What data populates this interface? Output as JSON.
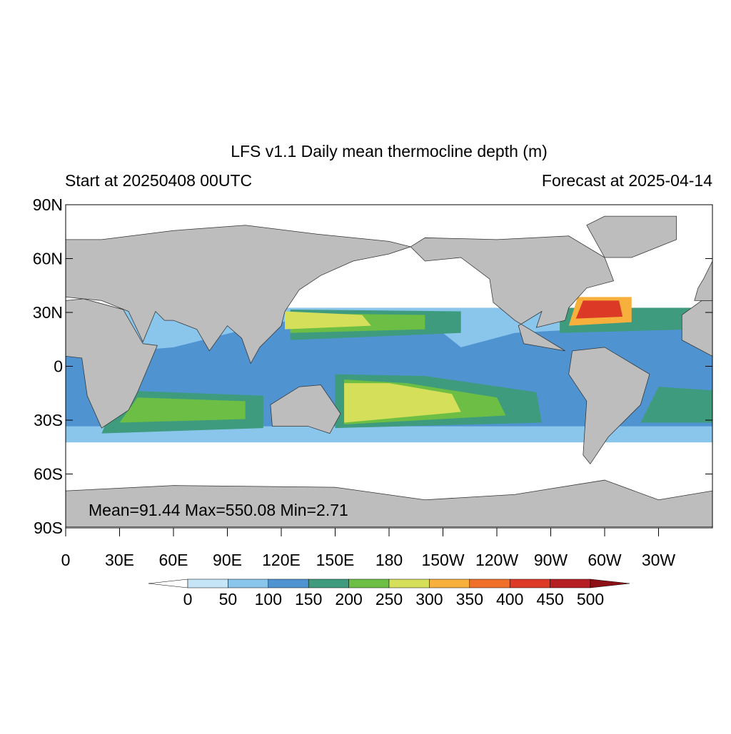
{
  "title": "LFS v1.1 Daily mean thermocline depth (m)",
  "subtitle_left": "Start at 20250408 00UTC",
  "subtitle_right": "Forecast at 2025-04-14",
  "map": {
    "lonlim": [
      0,
      360
    ],
    "latlim": [
      -90,
      90
    ],
    "lat_ticks": [
      {
        "value": 90,
        "label": "90N"
      },
      {
        "value": 60,
        "label": "60N"
      },
      {
        "value": 30,
        "label": "30N"
      },
      0,
      {
        "value": -30,
        "label": "30S"
      },
      {
        "value": -60,
        "label": "60S"
      },
      {
        "value": -90,
        "label": "90S"
      }
    ],
    "lon_ticks": [
      0,
      {
        "value": 30,
        "label": "30E"
      },
      {
        "value": 60,
        "label": "60E"
      },
      {
        "value": 90,
        "label": "90E"
      },
      {
        "value": 120,
        "label": "120E"
      },
      {
        "value": 150,
        "label": "150E"
      },
      180,
      {
        "value": 210,
        "label": "150W"
      },
      {
        "value": 240,
        "label": "120W"
      },
      {
        "value": 270,
        "label": "90W"
      },
      {
        "value": 300,
        "label": "60W"
      },
      {
        "value": 330,
        "label": "30W"
      }
    ],
    "annotation": "Mean=91.44  Max=550.08  Min=2.71"
  },
  "colorbar": {
    "levels": [
      0,
      50,
      100,
      150,
      200,
      250,
      300,
      350,
      400,
      450,
      500
    ],
    "colors": [
      "#ffffff",
      "#c6e6f8",
      "#8ac6ec",
      "#4f93d0",
      "#3e9b7e",
      "#6cbf44",
      "#d6df5a",
      "#f7b03c",
      "#f0702a",
      "#dc3a26",
      "#b51e23",
      "#8c1016"
    ]
  }
}
